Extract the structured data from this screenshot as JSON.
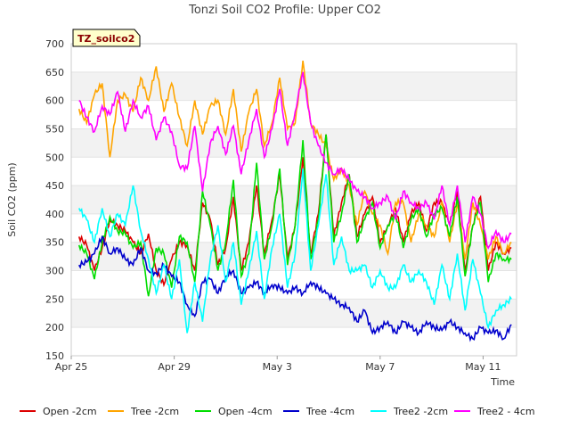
{
  "chart_data": {
    "type": "line",
    "title": "Tonzi Soil CO2 Profile: Upper CO2",
    "badge": "TZ_soilco2",
    "xlabel": "Time",
    "ylabel": "Soil CO2 (ppm)",
    "ylim": [
      150,
      700
    ],
    "yticks": [
      150,
      200,
      250,
      300,
      350,
      400,
      450,
      500,
      550,
      600,
      650,
      700
    ],
    "xlim": [
      0,
      17.3
    ],
    "xticks": [
      {
        "value": 0,
        "label": "Apr 25"
      },
      {
        "value": 4,
        "label": "Apr 29"
      },
      {
        "value": 8,
        "label": "May 3"
      },
      {
        "value": 12,
        "label": "May 7"
      },
      {
        "value": 16,
        "label": "May 11"
      }
    ],
    "background_bands": true,
    "legend_position": "bottom",
    "series": [
      {
        "name": "Open -2cm",
        "color": "#dd0000",
        "x": [
          0.3,
          0.6,
          0.9,
          1.2,
          1.5,
          1.8,
          2.1,
          2.4,
          2.7,
          3.0,
          3.3,
          3.6,
          3.9,
          4.2,
          4.5,
          4.8,
          5.1,
          5.4,
          5.7,
          6.0,
          6.3,
          6.6,
          6.9,
          7.2,
          7.5,
          7.8,
          8.1,
          8.4,
          8.7,
          9.0,
          9.3,
          9.6,
          9.9,
          10.2,
          10.5,
          10.8,
          11.1,
          11.4,
          11.7,
          12.0,
          12.3,
          12.6,
          12.9,
          13.2,
          13.5,
          13.8,
          14.1,
          14.4,
          14.7,
          15.0,
          15.3,
          15.6,
          15.9,
          16.2,
          16.5,
          16.8,
          17.1
        ],
        "y": [
          360,
          345,
          300,
          340,
          390,
          380,
          370,
          350,
          330,
          365,
          300,
          275,
          320,
          350,
          345,
          300,
          420,
          390,
          310,
          340,
          430,
          300,
          350,
          450,
          330,
          390,
          470,
          320,
          380,
          500,
          330,
          400,
          540,
          360,
          420,
          470,
          360,
          400,
          430,
          350,
          380,
          410,
          350,
          400,
          420,
          370,
          420,
          420,
          380,
          440,
          300,
          380,
          430,
          300,
          350,
          330,
          340
        ]
      },
      {
        "name": "Tree -2cm",
        "color": "#ffa500",
        "x": [
          0.3,
          0.6,
          0.9,
          1.2,
          1.5,
          1.8,
          2.1,
          2.4,
          2.7,
          3.0,
          3.3,
          3.6,
          3.9,
          4.2,
          4.5,
          4.8,
          5.1,
          5.4,
          5.7,
          6.0,
          6.3,
          6.6,
          6.9,
          7.2,
          7.5,
          7.8,
          8.1,
          8.4,
          8.7,
          9.0,
          9.3,
          9.6,
          9.9,
          10.2,
          10.5,
          10.8,
          11.1,
          11.4,
          11.7,
          12.0,
          12.3,
          12.6,
          12.9,
          13.2,
          13.5,
          13.8,
          14.1,
          14.4,
          14.7,
          15.0,
          15.3,
          15.6,
          15.9,
          16.2,
          16.5,
          16.8,
          17.1
        ],
        "y": [
          585,
          560,
          610,
          630,
          500,
          600,
          610,
          580,
          640,
          600,
          660,
          580,
          630,
          570,
          520,
          600,
          540,
          590,
          600,
          540,
          620,
          510,
          580,
          620,
          520,
          560,
          640,
          550,
          560,
          670,
          560,
          540,
          520,
          460,
          480,
          450,
          380,
          440,
          400,
          380,
          330,
          420,
          420,
          350,
          400,
          380,
          360,
          420,
          350,
          420,
          320,
          420,
          380,
          320,
          360,
          330,
          350
        ]
      },
      {
        "name": "Open -4cm",
        "color": "#00dd00",
        "x": [
          0.3,
          0.6,
          0.9,
          1.2,
          1.5,
          1.8,
          2.1,
          2.4,
          2.7,
          3.0,
          3.3,
          3.6,
          3.9,
          4.2,
          4.5,
          4.8,
          5.1,
          5.4,
          5.7,
          6.0,
          6.3,
          6.6,
          6.9,
          7.2,
          7.5,
          7.8,
          8.1,
          8.4,
          8.7,
          9.0,
          9.3,
          9.6,
          9.9,
          10.2,
          10.5,
          10.8,
          11.1,
          11.4,
          11.7,
          12.0,
          12.3,
          12.6,
          12.9,
          13.2,
          13.5,
          13.8,
          14.1,
          14.4,
          14.7,
          15.0,
          15.3,
          15.6,
          15.9,
          16.2,
          16.5,
          16.8,
          17.1
        ],
        "y": [
          345,
          330,
          285,
          350,
          395,
          370,
          365,
          340,
          350,
          255,
          340,
          330,
          270,
          360,
          350,
          280,
          440,
          380,
          300,
          350,
          460,
          290,
          330,
          490,
          320,
          380,
          480,
          310,
          380,
          530,
          320,
          390,
          540,
          350,
          400,
          470,
          350,
          390,
          420,
          340,
          380,
          400,
          340,
          390,
          410,
          360,
          400,
          410,
          360,
          430,
          290,
          380,
          420,
          280,
          330,
          320,
          320
        ]
      },
      {
        "name": "Tree -4cm",
        "color": "#0000cc",
        "x": [
          0.3,
          0.6,
          0.9,
          1.2,
          1.5,
          1.8,
          2.1,
          2.4,
          2.7,
          3.0,
          3.3,
          3.6,
          3.9,
          4.2,
          4.5,
          4.8,
          5.1,
          5.4,
          5.7,
          6.0,
          6.3,
          6.6,
          6.9,
          7.2,
          7.5,
          7.8,
          8.1,
          8.4,
          8.7,
          9.0,
          9.3,
          9.6,
          9.9,
          10.2,
          10.5,
          10.8,
          11.1,
          11.4,
          11.7,
          12.0,
          12.3,
          12.6,
          12.9,
          13.2,
          13.5,
          13.8,
          14.1,
          14.4,
          14.7,
          15.0,
          15.3,
          15.6,
          15.9,
          16.2,
          16.5,
          16.8,
          17.1
        ],
        "y": [
          310,
          315,
          330,
          360,
          330,
          340,
          320,
          310,
          340,
          300,
          295,
          310,
          290,
          280,
          240,
          220,
          280,
          285,
          260,
          290,
          300,
          260,
          270,
          280,
          260,
          275,
          270,
          260,
          270,
          260,
          280,
          270,
          260,
          250,
          240,
          235,
          210,
          230,
          190,
          200,
          210,
          190,
          210,
          200,
          190,
          210,
          200,
          195,
          210,
          200,
          190,
          180,
          200,
          190,
          195,
          180,
          205
        ]
      },
      {
        "name": "Tree2 -2cm",
        "color": "#00ffff",
        "x": [
          0.3,
          0.6,
          0.9,
          1.2,
          1.5,
          1.8,
          2.1,
          2.4,
          2.7,
          3.0,
          3.3,
          3.6,
          3.9,
          4.2,
          4.5,
          4.8,
          5.1,
          5.4,
          5.7,
          6.0,
          6.3,
          6.6,
          6.9,
          7.2,
          7.5,
          7.8,
          8.1,
          8.4,
          8.7,
          9.0,
          9.3,
          9.6,
          9.9,
          10.2,
          10.5,
          10.8,
          11.1,
          11.4,
          11.7,
          12.0,
          12.3,
          12.6,
          12.9,
          13.2,
          13.5,
          13.8,
          14.1,
          14.4,
          14.7,
          15.0,
          15.3,
          15.6,
          15.9,
          16.2,
          16.5,
          16.8,
          17.1
        ],
        "y": [
          410,
          390,
          350,
          410,
          360,
          400,
          380,
          450,
          370,
          320,
          260,
          310,
          250,
          320,
          190,
          280,
          210,
          320,
          380,
          280,
          350,
          240,
          300,
          370,
          250,
          340,
          400,
          270,
          330,
          480,
          300,
          380,
          470,
          310,
          360,
          300,
          300,
          310,
          270,
          300,
          270,
          270,
          310,
          280,
          300,
          280,
          240,
          310,
          250,
          330,
          230,
          320,
          260,
          200,
          230,
          240,
          250
        ]
      },
      {
        "name": "Tree2 - 4cm",
        "color": "#ff00ff",
        "x": [
          0.3,
          0.6,
          0.9,
          1.2,
          1.5,
          1.8,
          2.1,
          2.4,
          2.7,
          3.0,
          3.3,
          3.6,
          3.9,
          4.2,
          4.5,
          4.8,
          5.1,
          5.4,
          5.7,
          6.0,
          6.3,
          6.6,
          6.9,
          7.2,
          7.5,
          7.8,
          8.1,
          8.4,
          8.7,
          9.0,
          9.3,
          9.6,
          9.9,
          10.2,
          10.5,
          10.8,
          11.1,
          11.4,
          11.7,
          12.0,
          12.3,
          12.6,
          12.9,
          13.2,
          13.5,
          13.8,
          14.1,
          14.4,
          14.7,
          15.0,
          15.3,
          15.6,
          15.9,
          16.2,
          16.5,
          16.8,
          17.1
        ],
        "y": [
          600,
          570,
          545,
          590,
          575,
          615,
          545,
          600,
          570,
          590,
          530,
          570,
          545,
          485,
          480,
          555,
          440,
          525,
          555,
          505,
          555,
          470,
          530,
          585,
          500,
          550,
          620,
          520,
          580,
          650,
          560,
          520,
          490,
          470,
          480,
          460,
          440,
          430,
          410,
          420,
          430,
          390,
          440,
          420,
          410,
          420,
          390,
          450,
          380,
          450,
          350,
          430,
          400,
          340,
          370,
          350,
          365
        ]
      }
    ],
    "legend": [
      {
        "name": "Open -2cm",
        "color": "#dd0000"
      },
      {
        "name": "Tree -2cm",
        "color": "#ffa500"
      },
      {
        "name": "Open -4cm",
        "color": "#00dd00"
      },
      {
        "name": "Tree -4cm",
        "color": "#0000cc"
      },
      {
        "name": "Tree2 -2cm",
        "color": "#00ffff"
      },
      {
        "name": "Tree2 - 4cm",
        "color": "#ff00ff"
      }
    ]
  }
}
